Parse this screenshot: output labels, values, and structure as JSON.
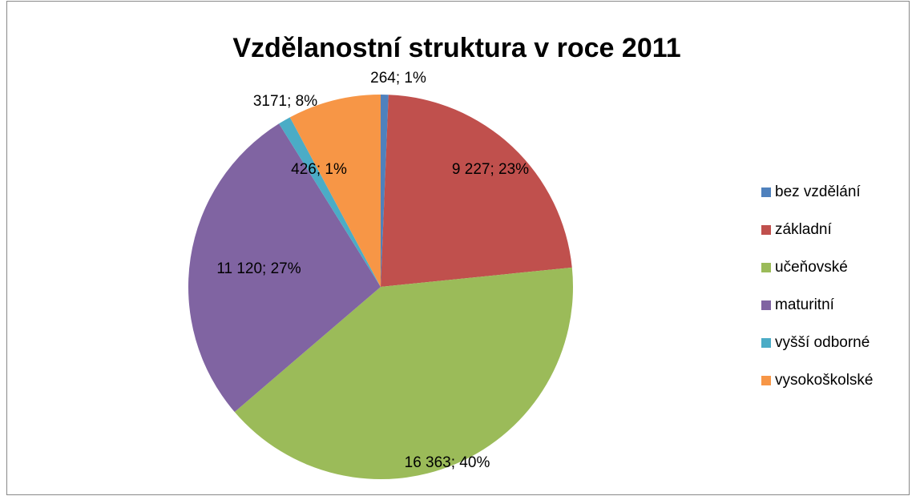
{
  "chart_data": {
    "type": "pie",
    "title": "Vzdělanostní struktura v roce 2011",
    "categories": [
      "bez vzdělání",
      "základní",
      "učeňovské",
      "maturitní",
      "vyšší odborné",
      "vysokoškolské"
    ],
    "values": [
      264,
      9227,
      16363,
      11120,
      426,
      3171
    ],
    "value_labels": [
      "264; 1%",
      "9 227; 23%",
      "16 363; 40%",
      "11 120; 27%",
      "426; 1%",
      "3171; 8%"
    ],
    "colors": [
      "#4f81bd",
      "#c0504d",
      "#9bbb59",
      "#8064a2",
      "#4bacc6",
      "#f79646"
    ],
    "legend": "right"
  }
}
